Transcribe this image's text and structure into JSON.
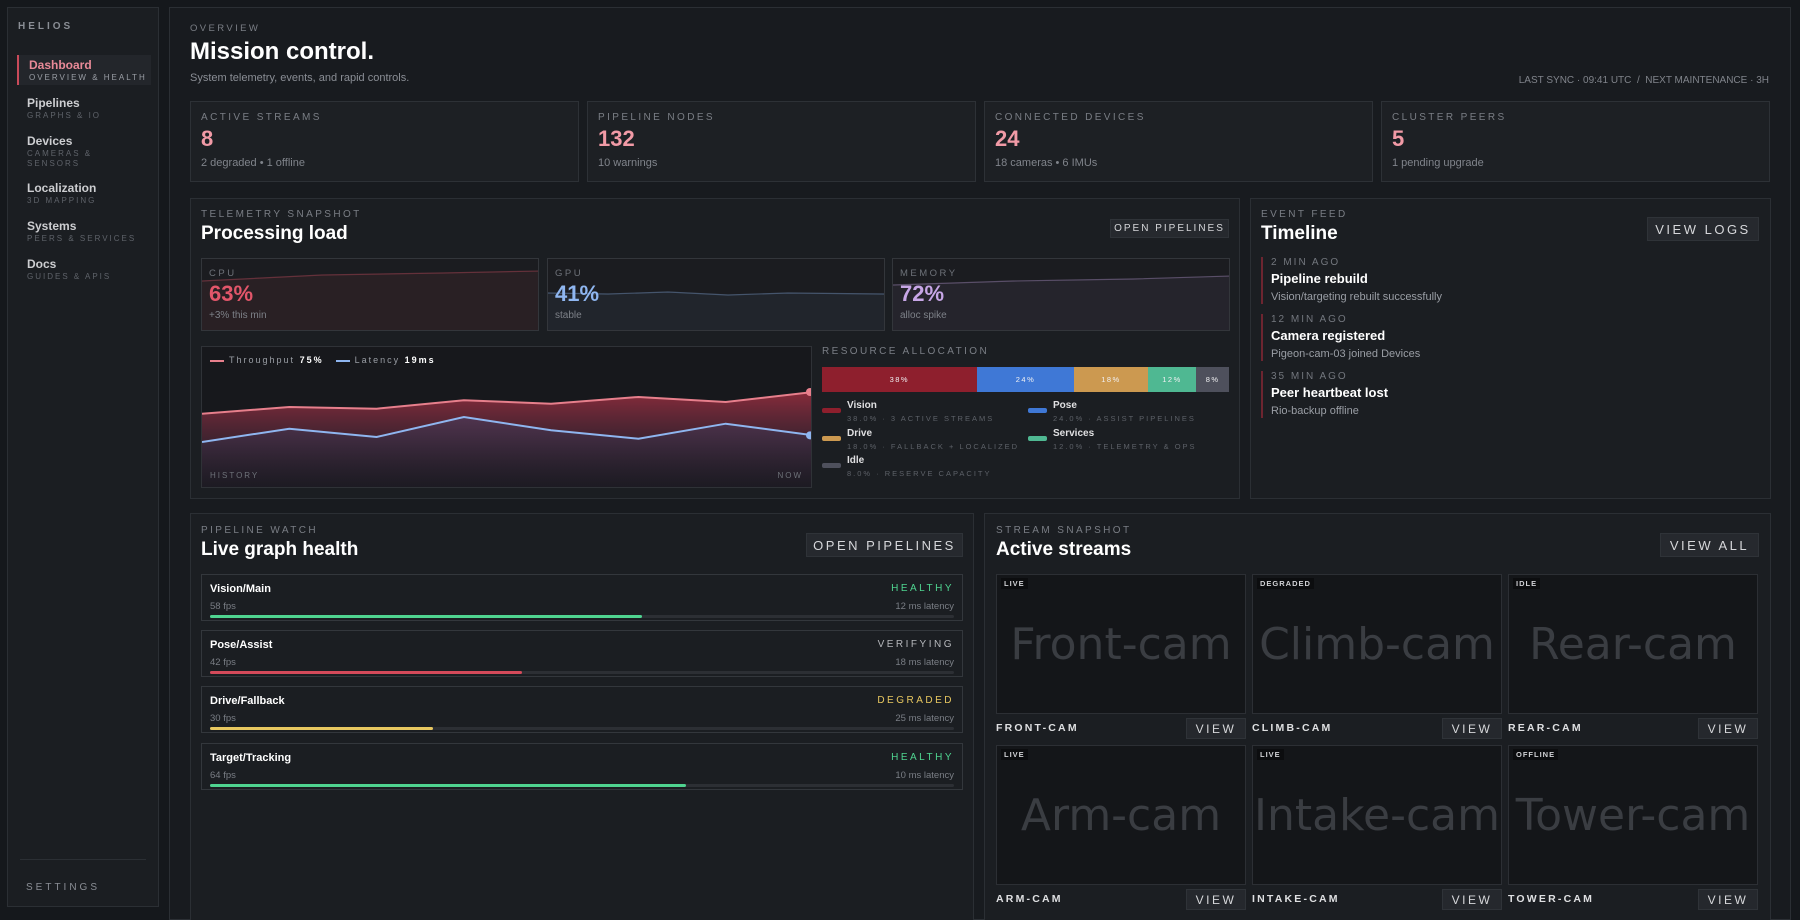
{
  "sidebar": {
    "brand": "HELIOS",
    "items": [
      {
        "title": "Dashboard",
        "sub": "OVERVIEW & HEALTH"
      },
      {
        "title": "Pipelines",
        "sub": "GRAPHS & IO"
      },
      {
        "title": "Devices",
        "sub": "CAMERAS &",
        "sub2": "SENSORS"
      },
      {
        "title": "Localization",
        "sub": "3D MAPPING"
      },
      {
        "title": "Systems",
        "sub": "PEERS & SERVICES"
      },
      {
        "title": "Docs",
        "sub": "GUIDES & APIS"
      }
    ],
    "settings": "SETTINGS"
  },
  "header": {
    "eyebrow": "OVERVIEW",
    "title": "Mission control.",
    "subtitle": "System telemetry, events, and rapid controls.",
    "sync": "LAST SYNC · 09:41 UTC  /  NEXT MAINTENANCE · 3H"
  },
  "stats": [
    {
      "label": "ACTIVE STREAMS",
      "value": "8",
      "desc": "2 degraded • 1 offline"
    },
    {
      "label": "PIPELINE NODES",
      "value": "132",
      "desc": "10 warnings"
    },
    {
      "label": "CONNECTED DEVICES",
      "value": "24",
      "desc": "18 cameras • 6 IMUs"
    },
    {
      "label": "CLUSTER PEERS",
      "value": "5",
      "desc": "1 pending upgrade"
    }
  ],
  "telemetry": {
    "eyebrow": "TELEMETRY SNAPSHOT",
    "title": "Processing load",
    "button": "OPEN PIPELINES",
    "metrics": [
      {
        "label": "CPU",
        "value": "63%",
        "note": "+3% this min",
        "color": "#e2566a"
      },
      {
        "label": "GPU",
        "value": "41%",
        "note": "stable",
        "color": "#8fb6f0"
      },
      {
        "label": "MEMORY",
        "value": "72%",
        "note": "alloc spike",
        "color": "#c7a6e6"
      }
    ],
    "chart": {
      "legend": [
        {
          "name": "Throughput",
          "value": "75%",
          "color": "#e77f8c"
        },
        {
          "name": "Latency",
          "value": "19ms",
          "color": "#8fb6f0"
        }
      ],
      "x_start": "HISTORY",
      "x_end": "NOW"
    }
  },
  "chart_data": {
    "type": "area",
    "series": [
      {
        "name": "Throughput",
        "values": [
          72,
          76,
          75,
          80,
          78,
          82,
          79,
          85
        ]
      },
      {
        "name": "Latency",
        "values": [
          55,
          63,
          58,
          70,
          62,
          57,
          66,
          59
        ]
      }
    ],
    "ylim": [
      0,
      100
    ]
  },
  "resources": {
    "title": "RESOURCE ALLOCATION",
    "segments": [
      {
        "name": "Vision",
        "pct": 38,
        "label": "38%",
        "detail": "38.0% · 3 ACTIVE STREAMS",
        "color": "#8e1f2d"
      },
      {
        "name": "Pose",
        "pct": 24,
        "label": "24%",
        "detail": "24.0% · ASSIST PIPELINES",
        "color": "#3f78d6"
      },
      {
        "name": "Drive",
        "pct": 18,
        "label": "18%",
        "detail": "18.0% · FALLBACK + LOCALIZED",
        "color": "#cc9950"
      },
      {
        "name": "Services",
        "pct": 12,
        "label": "12%",
        "detail": "12.0% · TELEMETRY & OPS",
        "color": "#4fb892"
      },
      {
        "name": "Idle",
        "pct": 8,
        "label": "8%",
        "detail": "8.0% · RESERVE CAPACITY",
        "color": "#4e505c"
      }
    ]
  },
  "events": {
    "eyebrow": "EVENT FEED",
    "title": "Timeline",
    "button": "VIEW LOGS",
    "items": [
      {
        "time": "2 MIN AGO",
        "title": "Pipeline rebuild",
        "desc": "Vision/targeting rebuilt successfully"
      },
      {
        "time": "12 MIN AGO",
        "title": "Camera registered",
        "desc": "Pigeon-cam-03 joined Devices"
      },
      {
        "time": "35 MIN AGO",
        "title": "Peer heartbeat lost",
        "desc": "Rio-backup offline"
      }
    ]
  },
  "pipelines": {
    "eyebrow": "PIPELINE WATCH",
    "title": "Live graph health",
    "button": "OPEN PIPELINES",
    "items": [
      {
        "name": "Vision/Main",
        "status": "HEALTHY",
        "fps": "58 fps",
        "latency": "12 ms latency",
        "progress": 0.58,
        "color": "#4fd490",
        "status_color": "#4fd490"
      },
      {
        "name": "Pose/Assist",
        "status": "VERIFYING",
        "fps": "42 fps",
        "latency": "18 ms latency",
        "progress": 0.42,
        "color": "#d44a5a",
        "status_color": "#b5b7bb"
      },
      {
        "name": "Drive/Fallback",
        "status": "DEGRADED",
        "fps": "30 fps",
        "latency": "25 ms latency",
        "progress": 0.3,
        "color": "#e8c860",
        "status_color": "#e8c860"
      },
      {
        "name": "Target/Tracking",
        "status": "HEALTHY",
        "fps": "64 fps",
        "latency": "10 ms latency",
        "progress": 0.64,
        "color": "#4fd490",
        "status_color": "#4fd490"
      }
    ]
  },
  "streams": {
    "eyebrow": "STREAM SNAPSHOT",
    "title": "Active streams",
    "button": "VIEW ALL",
    "view_label": "VIEW",
    "items": [
      {
        "badge": "LIVE",
        "preview": "Front-cam",
        "label": "FRONT-CAM"
      },
      {
        "badge": "DEGRADED",
        "preview": "Climb-cam",
        "label": "CLIMB-CAM"
      },
      {
        "badge": "IDLE",
        "preview": "Rear-cam",
        "label": "REAR-CAM"
      },
      {
        "badge": "LIVE",
        "preview": "Arm-cam",
        "label": "ARM-CAM"
      },
      {
        "badge": "LIVE",
        "preview": "Intake-cam",
        "label": "INTAKE-CAM"
      },
      {
        "badge": "OFFLINE",
        "preview": "Tower-cam",
        "label": "TOWER-CAM"
      }
    ]
  }
}
